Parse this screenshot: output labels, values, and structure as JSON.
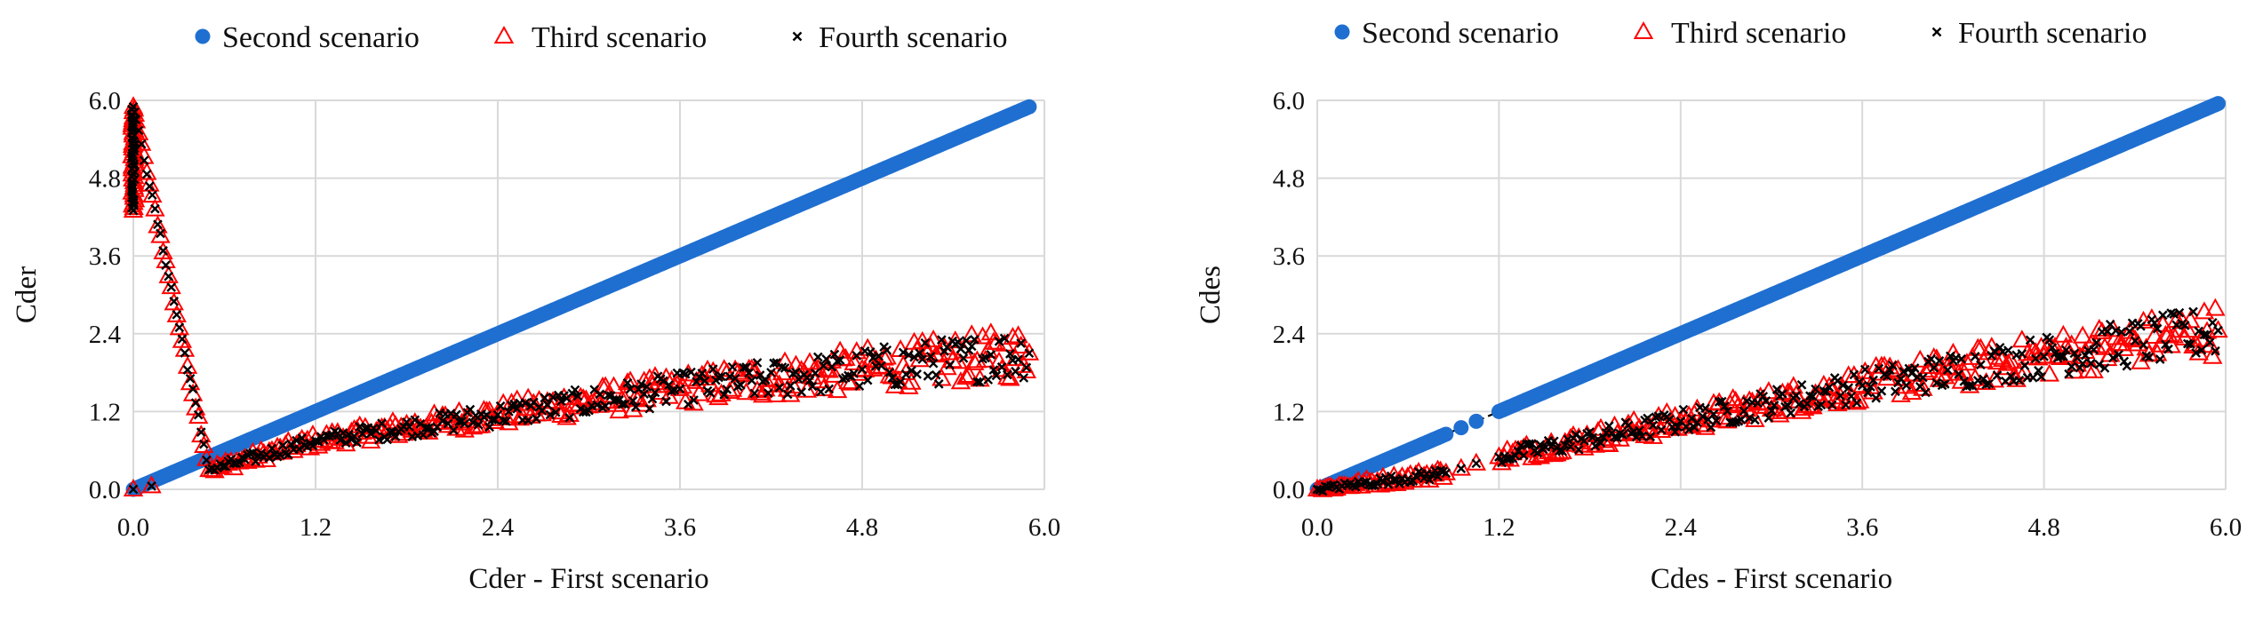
{
  "chart_data": [
    {
      "type": "scatter",
      "xlabel": "Cder - First scenario",
      "ylabel": "Cder",
      "xlim": [
        0,
        6
      ],
      "ylim": [
        0,
        6
      ],
      "x_ticks": [
        "0.0",
        "1.2",
        "2.4",
        "3.6",
        "4.8",
        "6.0"
      ],
      "y_ticks": [
        "0.0",
        "1.2",
        "2.4",
        "3.6",
        "4.8",
        "6.0"
      ],
      "grid": "both",
      "legend_position": "top",
      "reference_line": {
        "style": "dashed",
        "color": "#000000",
        "x": [
          0,
          0.5
        ],
        "y": [
          0,
          0.5
        ]
      },
      "series": [
        {
          "name": "Second scenario",
          "marker": "circle",
          "color": "#1f6fd1",
          "x": [
            0.0,
            0.5,
            1.2,
            2.4,
            3.6,
            4.8,
            5.9
          ],
          "y": [
            0.0,
            0.5,
            1.2,
            2.4,
            3.6,
            4.8,
            5.9
          ]
        },
        {
          "name": "Third scenario",
          "marker": "triangle",
          "color": "#ff0000",
          "x": [
            0.0,
            0.12,
            0.0,
            0.0,
            0.5,
            1.2,
            2.4,
            3.6,
            4.8,
            5.9
          ],
          "y": [
            0.0,
            0.05,
            4.3,
            5.9,
            0.3,
            0.75,
            1.15,
            1.55,
            1.85,
            2.1
          ]
        },
        {
          "name": "Fourth scenario",
          "marker": "x",
          "color": "#000000",
          "x": [
            0.0,
            0.12,
            0.0,
            0.0,
            0.5,
            1.2,
            2.4,
            3.6,
            4.8,
            5.9
          ],
          "y": [
            0.0,
            0.05,
            4.3,
            5.9,
            0.3,
            0.75,
            1.15,
            1.55,
            1.85,
            2.1
          ]
        }
      ]
    },
    {
      "type": "scatter",
      "xlabel": "Cdes - First scenario",
      "ylabel": "Cdes",
      "xlim": [
        0,
        6
      ],
      "ylim": [
        0,
        6
      ],
      "x_ticks": [
        "0.0",
        "1.2",
        "2.4",
        "3.6",
        "4.8",
        "6.0"
      ],
      "y_ticks": [
        "0.0",
        "1.2",
        "2.4",
        "3.6",
        "4.8",
        "6.0"
      ],
      "grid": "both",
      "legend_position": "top",
      "reference_line": {
        "style": "dashed",
        "color": "#000000",
        "x": [
          0,
          1.2
        ],
        "y": [
          0,
          1.2
        ]
      },
      "series": [
        {
          "name": "Second scenario",
          "marker": "circle",
          "color": "#1f6fd1",
          "x": [
            0.0,
            0.85,
            0.95,
            1.05,
            1.2,
            2.4,
            3.6,
            4.8,
            5.95
          ],
          "y": [
            0.0,
            0.85,
            0.95,
            1.05,
            1.2,
            2.4,
            3.6,
            4.8,
            5.95
          ]
        },
        {
          "name": "Third scenario",
          "marker": "triangle",
          "color": "#ff0000",
          "x": [
            0.0,
            0.85,
            0.95,
            1.05,
            1.2,
            2.4,
            3.6,
            4.8,
            5.95
          ],
          "y": [
            0.0,
            0.25,
            0.32,
            0.4,
            0.5,
            1.05,
            1.6,
            2.05,
            2.45
          ]
        },
        {
          "name": "Fourth scenario",
          "marker": "x",
          "color": "#000000",
          "x": [
            0.0,
            0.85,
            0.95,
            1.05,
            1.2,
            2.4,
            3.6,
            4.8,
            5.95
          ],
          "y": [
            0.0,
            0.25,
            0.32,
            0.4,
            0.5,
            1.05,
            1.6,
            2.05,
            2.45
          ]
        }
      ]
    }
  ]
}
